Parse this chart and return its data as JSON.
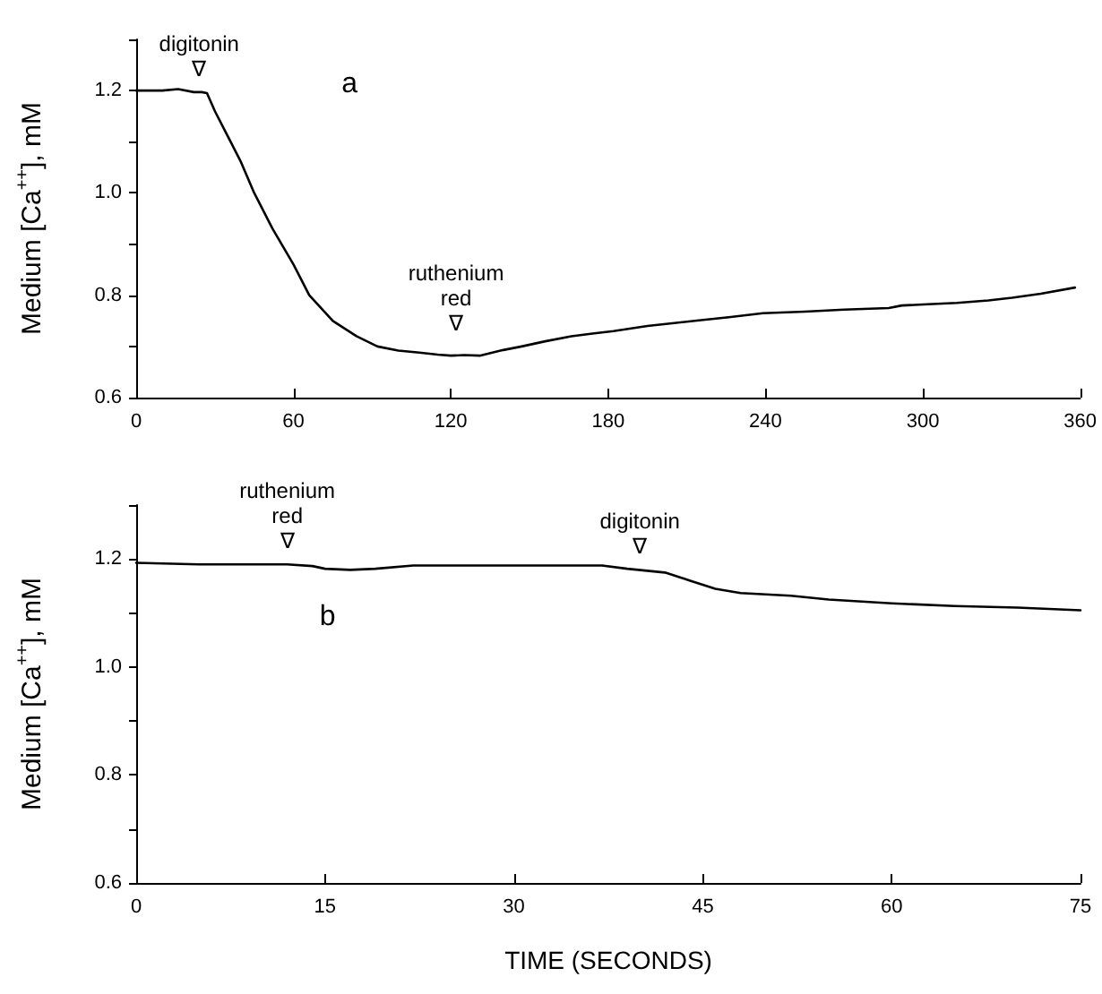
{
  "chart_data": [
    {
      "type": "line",
      "ylabel": "Medium [Ca$^{++}$], mM",
      "xlim": [
        0,
        360
      ],
      "xticks": [
        0,
        60,
        120,
        180,
        240,
        300,
        360
      ],
      "ylim": [
        0.6,
        1.3
      ],
      "yticks": [
        0.6,
        {
          "value": 0.7,
          "label": null
        },
        0.8,
        {
          "value": 0.9,
          "label": null
        },
        {
          "value": 1,
          "label": "1.0"
        },
        {
          "value": 1.1,
          "label": null
        },
        1.2,
        {
          "value": 1.3,
          "label": null
        }
      ],
      "grid": false,
      "marker": "none",
      "line_style": "solid",
      "annotations": [
        "a",
        {
          "text": "digitonin\n∇",
          "x": 24,
          "y": 1.197
        },
        {
          "text": "ruthenium\nred\n∇",
          "x": 122,
          "y": 0.7
        }
      ],
      "series": [
        {
          "color": "#000000",
          "x": [
            0,
            10,
            16,
            22,
            25,
            27,
            30,
            34,
            40,
            45,
            52,
            60,
            66,
            75,
            84,
            92,
            100,
            108,
            115,
            120,
            125,
            131,
            140,
            147,
            156,
            166,
            174,
            182,
            195,
            213,
            226,
            239,
            255,
            270,
            287,
            292,
            300,
            313,
            325,
            334,
            345,
            358
          ],
          "values": [
            1.2,
            1.2,
            1.203,
            1.197,
            1.197,
            1.195,
            1.16,
            1.12,
            1.06,
            1.0,
            0.93,
            0.86,
            0.8,
            0.75,
            0.72,
            0.7,
            0.692,
            0.688,
            0.684,
            0.682,
            0.683,
            0.682,
            0.693,
            0.7,
            0.71,
            0.72,
            0.725,
            0.73,
            0.74,
            0.75,
            0.757,
            0.765,
            0.768,
            0.772,
            0.775,
            0.78,
            0.782,
            0.785,
            0.79,
            0.795,
            0.803,
            0.815
          ]
        }
      ]
    },
    {
      "type": "line",
      "xlabel": "TIME (SECONDS)",
      "ylabel": "Medium [Ca$^{++}$], mM",
      "xlim": [
        0,
        75
      ],
      "xticks": [
        0,
        15,
        30,
        45,
        60,
        75
      ],
      "ylim": [
        0.6,
        1.3
      ],
      "yticks": [
        0.6,
        {
          "value": 0.7,
          "label": null
        },
        0.8,
        {
          "value": 0.9,
          "label": null
        },
        {
          "value": 1,
          "label": "1.0"
        },
        {
          "value": 1.1,
          "label": null
        },
        1.2,
        {
          "value": 1.3,
          "label": null
        }
      ],
      "grid": false,
      "marker": "none",
      "line_style": "solid",
      "annotations": [
        "b",
        {
          "text": "ruthenium\nred\n∇",
          "x": 12,
          "y": 1.19
        },
        {
          "text": "digitonin\n∇",
          "x": 40,
          "y": 1.18
        }
      ],
      "series": [
        {
          "color": "#000000",
          "x": [
            0,
            5,
            12,
            14,
            15,
            17,
            19,
            22,
            30,
            37,
            39,
            42,
            44,
            46,
            48,
            52,
            55,
            60,
            65,
            70,
            75
          ],
          "values": [
            1.193,
            1.19,
            1.19,
            1.187,
            1.182,
            1.18,
            1.182,
            1.188,
            1.188,
            1.188,
            1.182,
            1.175,
            1.16,
            1.145,
            1.137,
            1.132,
            1.125,
            1.118,
            1.113,
            1.11,
            1.105
          ]
        }
      ]
    }
  ]
}
